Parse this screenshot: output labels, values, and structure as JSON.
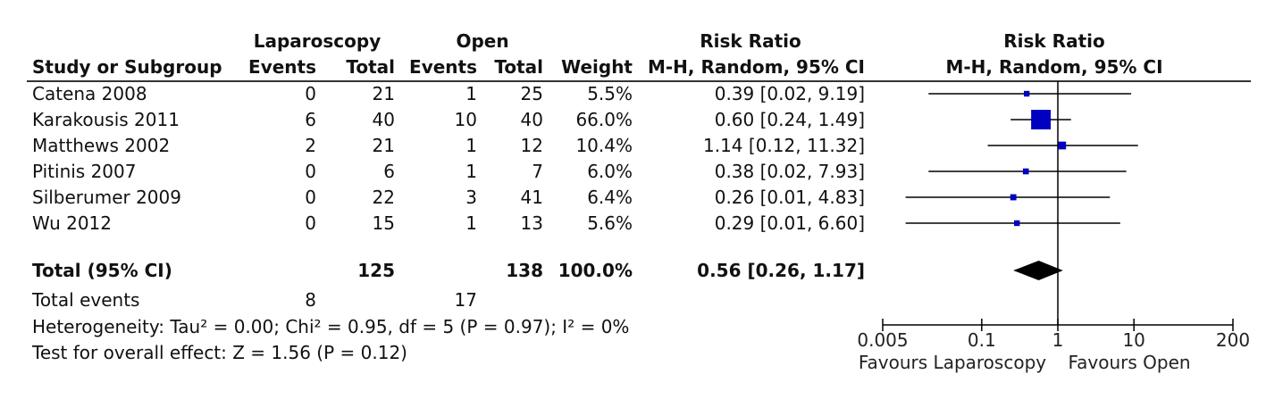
{
  "header": {
    "group1": "Laparoscopy",
    "group2": "Open",
    "rr_title": "Risk Ratio",
    "col_study": "Study or Subgroup",
    "col_events1": "Events",
    "col_total1": "Total",
    "col_events2": "Events",
    "col_total2": "Total",
    "col_weight": "Weight",
    "col_method": "M-H, Random, 95% CI",
    "plot_title": "Risk Ratio",
    "plot_method": "M-H, Random, 95% CI"
  },
  "studies": [
    {
      "name": "Catena 2008",
      "e1": "0",
      "n1": "21",
      "e2": "1",
      "n2": "25",
      "weight": "5.5%",
      "ci_text": "0.39 [0.02, 9.19]",
      "rr": 0.39,
      "lo": 0.02,
      "hi": 9.19,
      "w": 5.5
    },
    {
      "name": "Karakousis 2011",
      "e1": "6",
      "n1": "40",
      "e2": "10",
      "n2": "40",
      "weight": "66.0%",
      "ci_text": "0.60 [0.24, 1.49]",
      "rr": 0.6,
      "lo": 0.24,
      "hi": 1.49,
      "w": 66.0
    },
    {
      "name": "Matthews 2002",
      "e1": "2",
      "n1": "21",
      "e2": "1",
      "n2": "12",
      "weight": "10.4%",
      "ci_text": "1.14 [0.12, 11.32]",
      "rr": 1.14,
      "lo": 0.12,
      "hi": 11.32,
      "w": 10.4
    },
    {
      "name": "Pitinis 2007",
      "e1": "0",
      "n1": "6",
      "e2": "1",
      "n2": "7",
      "weight": "6.0%",
      "ci_text": "0.38 [0.02, 7.93]",
      "rr": 0.38,
      "lo": 0.02,
      "hi": 7.93,
      "w": 6.0
    },
    {
      "name": "Silberumer 2009",
      "e1": "0",
      "n1": "22",
      "e2": "3",
      "n2": "41",
      "weight": "6.4%",
      "ci_text": "0.26 [0.01, 4.83]",
      "rr": 0.26,
      "lo": 0.01,
      "hi": 4.83,
      "w": 6.4
    },
    {
      "name": "Wu 2012",
      "e1": "0",
      "n1": "15",
      "e2": "1",
      "n2": "13",
      "weight": "5.6%",
      "ci_text": "0.29 [0.01, 6.60]",
      "rr": 0.29,
      "lo": 0.01,
      "hi": 6.6,
      "w": 5.6
    }
  ],
  "total": {
    "label": "Total (95% CI)",
    "n1": "125",
    "n2": "138",
    "weight": "100.0%",
    "ci_text": "0.56 [0.26, 1.17]",
    "rr": 0.56,
    "lo": 0.26,
    "hi": 1.17
  },
  "total_events": {
    "label": "Total events",
    "e1": "8",
    "e2": "17"
  },
  "heterogeneity": "Heterogeneity: Tau² = 0.00; Chi² = 0.95, df = 5 (P = 0.97); I² = 0%",
  "overall_effect": "Test for overall effect: Z = 1.56 (P = 0.12)",
  "axis": {
    "ticks": [
      0.005,
      0.1,
      1,
      10,
      200
    ],
    "tick_labels": [
      "0.005",
      "0.1",
      "1",
      "10",
      "200"
    ],
    "scale": "log",
    "favours_left": "Favours Laparoscopy",
    "favours_right": "Favours Open"
  },
  "colors": {
    "marker": "#0000c0",
    "diamond": "#000000",
    "line": "#000000"
  },
  "chart_data": {
    "type": "forest",
    "title": "Risk Ratio",
    "subtitle": "M-H, Random, 95% CI",
    "categories": [
      "Catena 2008",
      "Karakousis 2011",
      "Matthews 2002",
      "Pitinis 2007",
      "Silberumer 2009",
      "Wu 2012",
      "Total (95% CI)"
    ],
    "series": [
      {
        "name": "Risk Ratio",
        "values": [
          0.39,
          0.6,
          1.14,
          0.38,
          0.26,
          0.29,
          0.56
        ]
      }
    ],
    "ci_lower": [
      0.02,
      0.24,
      0.12,
      0.02,
      0.01,
      0.01,
      0.26
    ],
    "ci_upper": [
      9.19,
      1.49,
      11.32,
      7.93,
      4.83,
      6.6,
      1.17
    ],
    "weights": [
      5.5,
      66.0,
      10.4,
      6.0,
      6.4,
      5.6,
      100.0
    ],
    "xscale": "log",
    "xlim": [
      0.005,
      200
    ],
    "xticks": [
      "0.005",
      "0.1",
      "1",
      "10",
      "200"
    ],
    "xlabel_left": "Favours Laparoscopy",
    "xlabel_right": "Favours Open"
  }
}
